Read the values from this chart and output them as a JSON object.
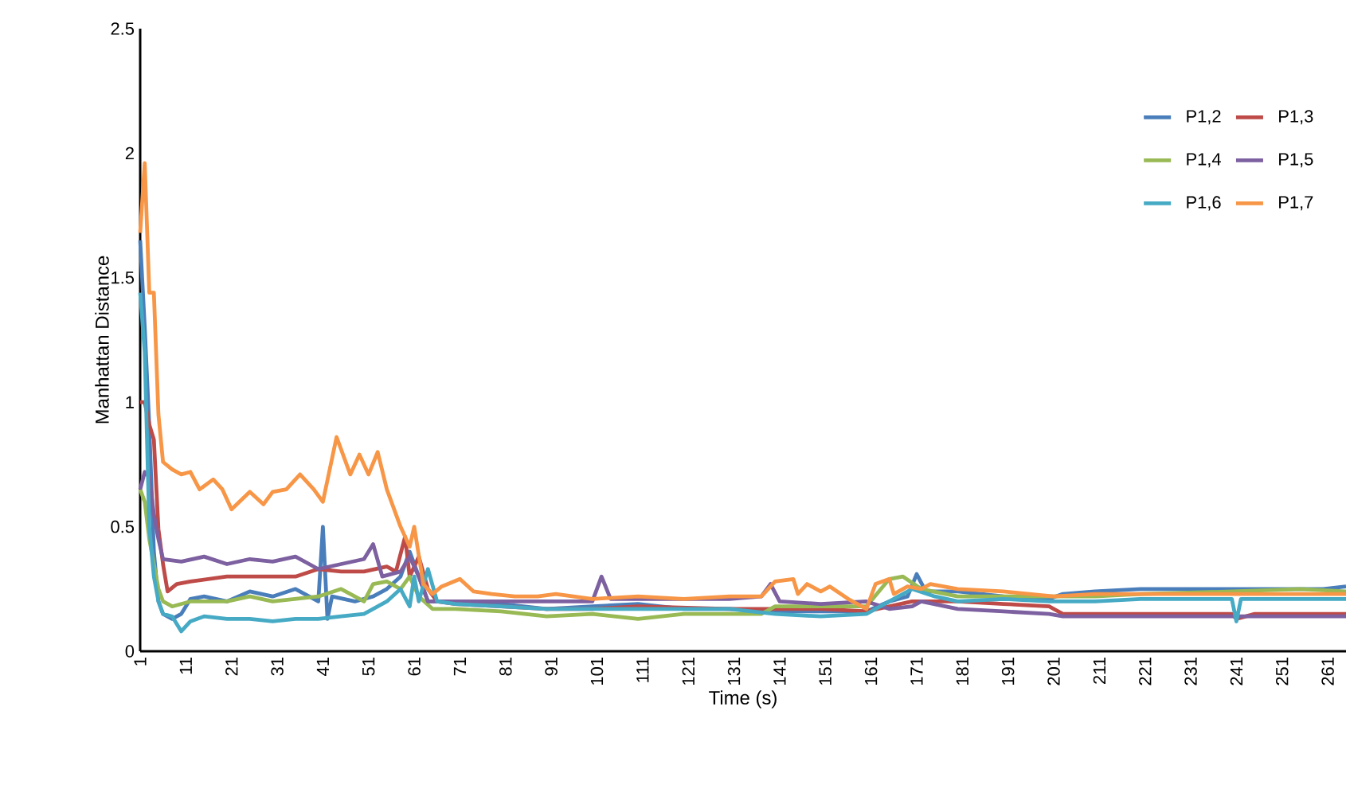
{
  "chart_data": {
    "type": "line",
    "xlabel": "Time (s)",
    "ylabel": "Manhattan Distance",
    "xlim": [
      1,
      265
    ],
    "xticks": [
      1,
      11,
      21,
      31,
      41,
      51,
      61,
      71,
      81,
      91,
      101,
      111,
      121,
      131,
      141,
      151,
      161,
      171,
      181,
      191,
      201,
      211,
      221,
      231,
      241,
      251,
      261
    ],
    "ylim": [
      0,
      2.5
    ],
    "yticks": [
      0,
      0.5,
      1,
      1.5,
      2,
      2.5
    ],
    "grid": false,
    "legend": "top right",
    "marker": "none",
    "line_style": "solid",
    "series": [
      {
        "name": "P1,2",
        "color": "#4a7ebb",
        "x": [
          1,
          2,
          3,
          4,
          5,
          6,
          8,
          10,
          12,
          15,
          20,
          25,
          30,
          35,
          40,
          41,
          42,
          43,
          48,
          52,
          55,
          58,
          60,
          62,
          64,
          70,
          80,
          90,
          100,
          110,
          120,
          130,
          140,
          150,
          160,
          165,
          169,
          171,
          173,
          180,
          190,
          200,
          203,
          210,
          220,
          230,
          240,
          250,
          260,
          265
        ],
        "values": [
          1.65,
          1.3,
          0.9,
          0.4,
          0.2,
          0.15,
          0.13,
          0.15,
          0.21,
          0.22,
          0.2,
          0.24,
          0.22,
          0.25,
          0.2,
          0.5,
          0.13,
          0.22,
          0.2,
          0.22,
          0.25,
          0.3,
          0.4,
          0.3,
          0.2,
          0.2,
          0.19,
          0.17,
          0.18,
          0.19,
          0.17,
          0.17,
          0.16,
          0.16,
          0.16,
          0.2,
          0.22,
          0.31,
          0.24,
          0.24,
          0.22,
          0.21,
          0.23,
          0.24,
          0.25,
          0.25,
          0.25,
          0.25,
          0.25,
          0.26
        ]
      },
      {
        "name": "P1,3",
        "color": "#be4b48",
        "x": [
          1,
          2,
          3,
          4,
          5,
          6,
          7,
          9,
          12,
          20,
          30,
          35,
          40,
          45,
          50,
          55,
          57,
          59,
          60,
          62,
          64,
          66,
          70,
          80,
          90,
          100,
          110,
          130,
          140,
          150,
          160,
          170,
          180,
          190,
          200,
          203,
          210,
          220,
          240,
          241,
          245,
          260,
          265
        ],
        "values": [
          1.0,
          1.0,
          0.91,
          0.85,
          0.49,
          0.35,
          0.24,
          0.27,
          0.28,
          0.3,
          0.3,
          0.3,
          0.33,
          0.32,
          0.32,
          0.34,
          0.32,
          0.46,
          0.3,
          0.38,
          0.25,
          0.2,
          0.19,
          0.18,
          0.17,
          0.17,
          0.18,
          0.17,
          0.17,
          0.17,
          0.16,
          0.2,
          0.2,
          0.19,
          0.18,
          0.15,
          0.15,
          0.15,
          0.15,
          0.13,
          0.15,
          0.15,
          0.15
        ]
      },
      {
        "name": "P1,4",
        "color": "#98b954",
        "x": [
          1,
          2,
          3,
          4,
          5,
          6,
          8,
          12,
          20,
          25,
          30,
          40,
          45,
          50,
          52,
          55,
          58,
          60,
          62,
          65,
          70,
          80,
          90,
          100,
          110,
          120,
          130,
          137,
          140,
          150,
          160,
          165,
          168,
          172,
          180,
          190,
          200,
          210,
          220,
          240,
          255,
          265
        ],
        "values": [
          0.65,
          0.6,
          0.45,
          0.35,
          0.25,
          0.2,
          0.18,
          0.2,
          0.2,
          0.22,
          0.2,
          0.22,
          0.25,
          0.2,
          0.27,
          0.28,
          0.25,
          0.3,
          0.22,
          0.17,
          0.17,
          0.16,
          0.14,
          0.15,
          0.13,
          0.15,
          0.15,
          0.15,
          0.18,
          0.18,
          0.18,
          0.29,
          0.3,
          0.25,
          0.22,
          0.22,
          0.22,
          0.22,
          0.23,
          0.24,
          0.25,
          0.24
        ]
      },
      {
        "name": "P1,5",
        "color": "#7d60a0",
        "x": [
          1,
          2,
          3,
          4,
          5,
          6,
          10,
          15,
          20,
          25,
          30,
          35,
          40,
          45,
          50,
          52,
          54,
          58,
          60,
          62,
          64,
          70,
          80,
          90,
          100,
          102,
          104,
          110,
          120,
          130,
          137,
          139,
          141,
          150,
          160,
          165,
          170,
          172,
          180,
          190,
          200,
          203,
          220,
          240,
          260,
          265
        ],
        "values": [
          0.65,
          0.72,
          0.7,
          0.55,
          0.45,
          0.37,
          0.36,
          0.38,
          0.35,
          0.37,
          0.36,
          0.38,
          0.33,
          0.35,
          0.37,
          0.43,
          0.3,
          0.32,
          0.38,
          0.3,
          0.2,
          0.2,
          0.2,
          0.2,
          0.2,
          0.3,
          0.21,
          0.21,
          0.21,
          0.21,
          0.22,
          0.27,
          0.2,
          0.19,
          0.2,
          0.17,
          0.18,
          0.2,
          0.17,
          0.16,
          0.15,
          0.14,
          0.14,
          0.14,
          0.14,
          0.14
        ]
      },
      {
        "name": "P1,6",
        "color": "#46aac5",
        "x": [
          1,
          2,
          3,
          4,
          5,
          6,
          8,
          10,
          12,
          15,
          20,
          25,
          30,
          35,
          40,
          45,
          50,
          55,
          58,
          60,
          61,
          62,
          64,
          66,
          70,
          80,
          90,
          100,
          110,
          120,
          130,
          140,
          150,
          160,
          165,
          170,
          175,
          180,
          190,
          200,
          210,
          220,
          240,
          241,
          242,
          260,
          265
        ],
        "values": [
          1.44,
          1.2,
          0.5,
          0.3,
          0.2,
          0.15,
          0.14,
          0.08,
          0.12,
          0.14,
          0.13,
          0.13,
          0.12,
          0.13,
          0.13,
          0.14,
          0.15,
          0.2,
          0.25,
          0.18,
          0.3,
          0.2,
          0.33,
          0.2,
          0.19,
          0.18,
          0.17,
          0.17,
          0.17,
          0.17,
          0.17,
          0.15,
          0.14,
          0.15,
          0.2,
          0.25,
          0.22,
          0.2,
          0.21,
          0.2,
          0.2,
          0.21,
          0.21,
          0.12,
          0.21,
          0.21,
          0.21
        ]
      },
      {
        "name": "P1,7",
        "color": "#f79646",
        "x": [
          1,
          2,
          3,
          4,
          5,
          6,
          8,
          10,
          12,
          14,
          17,
          19,
          21,
          25,
          28,
          30,
          33,
          36,
          39,
          41,
          44,
          47,
          49,
          51,
          53,
          55,
          58,
          60,
          61,
          63,
          65,
          67,
          71,
          74,
          78,
          83,
          88,
          92,
          100,
          110,
          120,
          130,
          137,
          140,
          144,
          145,
          147,
          150,
          152,
          156,
          160,
          162,
          165,
          166,
          169,
          172,
          174,
          180,
          190,
          201,
          210,
          230,
          250,
          265
        ],
        "values": [
          1.68,
          1.96,
          1.44,
          1.44,
          0.95,
          0.76,
          0.73,
          0.71,
          0.72,
          0.65,
          0.69,
          0.65,
          0.57,
          0.64,
          0.59,
          0.64,
          0.65,
          0.71,
          0.65,
          0.6,
          0.86,
          0.71,
          0.79,
          0.71,
          0.8,
          0.65,
          0.5,
          0.42,
          0.5,
          0.27,
          0.23,
          0.26,
          0.29,
          0.24,
          0.23,
          0.22,
          0.22,
          0.23,
          0.21,
          0.22,
          0.21,
          0.22,
          0.22,
          0.28,
          0.29,
          0.23,
          0.27,
          0.24,
          0.26,
          0.21,
          0.17,
          0.27,
          0.29,
          0.23,
          0.26,
          0.25,
          0.27,
          0.25,
          0.24,
          0.22,
          0.23,
          0.23,
          0.23,
          0.23
        ]
      }
    ]
  }
}
